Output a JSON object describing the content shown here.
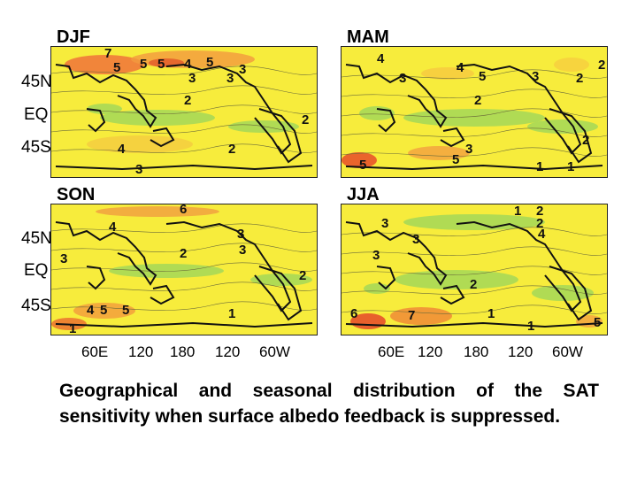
{
  "panels": [
    {
      "title": "DJF",
      "contour_labels": [
        "7",
        "5",
        "5",
        "5",
        "4",
        "5",
        "3",
        "3",
        "3",
        "2",
        "2",
        "4",
        "3",
        "2"
      ]
    },
    {
      "title": "MAM",
      "contour_labels": [
        "4",
        "3",
        "4",
        "5",
        "3",
        "2",
        "2",
        "2",
        "5",
        "5",
        "3",
        "1",
        "1",
        "2"
      ]
    },
    {
      "title": "SON",
      "contour_labels": [
        "6",
        "4",
        "5",
        "3",
        "3",
        "2",
        "2",
        "3",
        "4",
        "5",
        "1",
        "1"
      ]
    },
    {
      "title": "JJA",
      "contour_labels": [
        "2",
        "3",
        "1",
        "2",
        "4",
        "3",
        "3",
        "2",
        "7",
        "1",
        "1",
        "5",
        "6"
      ]
    }
  ],
  "lat_labels": [
    "45N",
    "EQ",
    "45S"
  ],
  "lon_labels": [
    "60E",
    "120",
    "180",
    "120",
    "60W"
  ],
  "caption": "Geographical and seasonal distribution of the SAT sensitivity when surface albedo feedback is suppressed."
}
